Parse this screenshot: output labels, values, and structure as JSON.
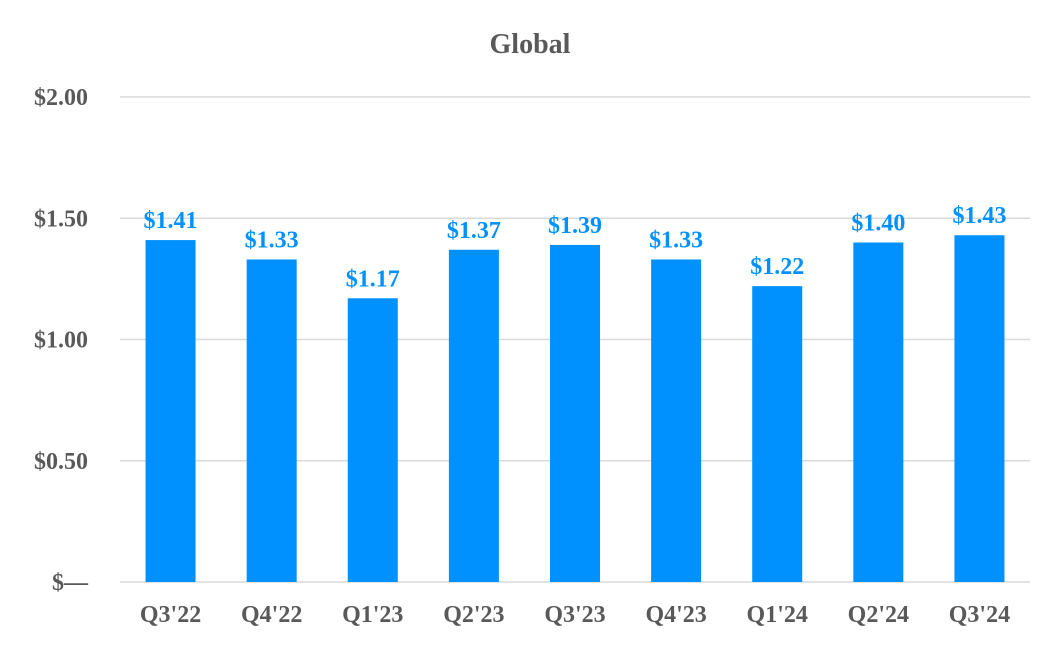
{
  "chart_data": {
    "type": "bar",
    "title": "Global",
    "xlabel": "",
    "ylabel": "",
    "categories": [
      "Q3'22",
      "Q4'22",
      "Q1'23",
      "Q2'23",
      "Q3'23",
      "Q4'23",
      "Q1'24",
      "Q2'24",
      "Q3'24"
    ],
    "values": [
      1.41,
      1.33,
      1.17,
      1.37,
      1.39,
      1.33,
      1.22,
      1.4,
      1.43
    ],
    "data_labels": [
      "$1.41",
      "$1.33",
      "$1.17",
      "$1.37",
      "$1.39",
      "$1.33",
      "$1.22",
      "$1.40",
      "$1.43"
    ],
    "ylim": [
      0,
      2.0
    ],
    "yticks": [
      0,
      0.5,
      1.0,
      1.5,
      2.0
    ],
    "ytick_labels": [
      "$—",
      "$0.50",
      "$1.00",
      "$1.50",
      "$2.00"
    ],
    "grid": true,
    "legend": "none",
    "colors": {
      "bar": "#0091ff",
      "data_label": "#0091ff",
      "text": "#595959",
      "grid": "#d9d9d9"
    }
  }
}
